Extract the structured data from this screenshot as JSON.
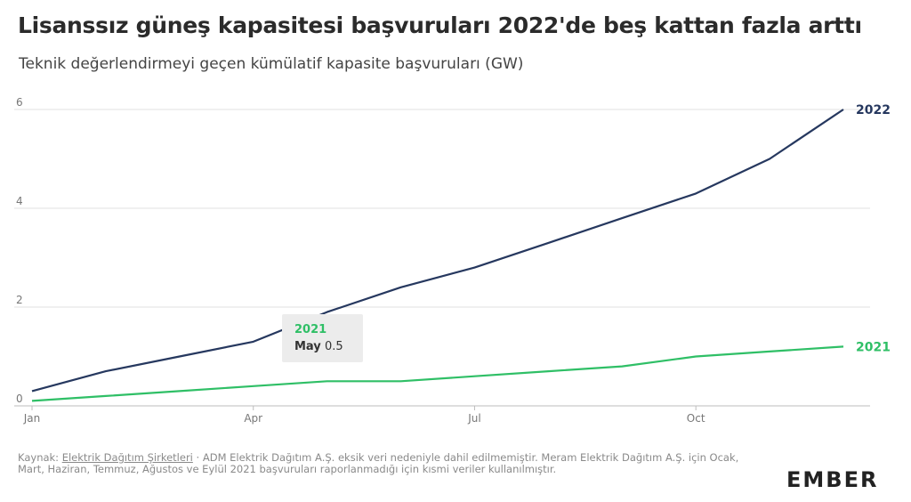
{
  "title": "Lisanssız güneş kapasitesi başvuruları 2022'de beş kattan fazla arttı",
  "subtitle": "Teknik değerlendirmeyi geçen kümülatif kapasite başvuruları (GW)",
  "chart_data": {
    "type": "line",
    "title": "Lisanssız güneş kapasitesi başvuruları 2022'de beş kattan fazla arttı",
    "subtitle": "Teknik değerlendirmeyi geçen kümülatif kapasite başvuruları (GW)",
    "x": [
      "Jan",
      "Feb",
      "Mar",
      "Apr",
      "May",
      "Jun",
      "Jul",
      "Aug",
      "Sep",
      "Oct",
      "Nov",
      "Dec"
    ],
    "xticks": [
      "Jan",
      "Apr",
      "Jul",
      "Oct"
    ],
    "yticks": [
      "0",
      "2",
      "4",
      "6"
    ],
    "ylim": [
      0,
      6
    ],
    "grid": true,
    "series": [
      {
        "name": "2022",
        "color": "#26385f",
        "values": [
          0.3,
          0.7,
          1.0,
          1.3,
          1.9,
          2.4,
          2.8,
          3.3,
          3.8,
          4.3,
          5.0,
          6.0
        ]
      },
      {
        "name": "2021",
        "color": "#2fbf66",
        "values": [
          0.1,
          0.2,
          0.3,
          0.4,
          0.5,
          0.5,
          0.6,
          0.7,
          0.8,
          1.0,
          1.1,
          1.2
        ]
      }
    ],
    "tooltip": {
      "series": "2021",
      "category": "May",
      "value": "0.5"
    }
  },
  "source": {
    "prefix": "Kaynak: ",
    "link": "Elektrik Dağıtım Şirketleri",
    "text": " · ADM Elektrik Dağıtım A.Ş. eksik veri nedeniyle dahil edilmemiştir. Meram Elektrik Dağıtım A.Ş. için Ocak, Mart, Haziran, Temmuz, Ağustos ve Eylül 2021 başvuruları raporlanmadığı için kısmi veriler kullanılmıştır."
  },
  "logo": "EMBER"
}
